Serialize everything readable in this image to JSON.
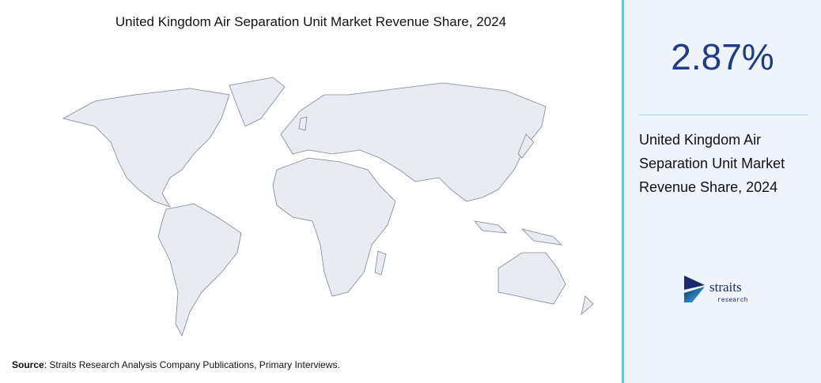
{
  "title": "United Kingdom Air Separation Unit Market Revenue Share, 2024",
  "stat": {
    "value": "2.87%",
    "description": [
      "United Kingdom Air",
      "Separation Unit Market",
      "Revenue Share, 2024"
    ]
  },
  "logo": {
    "name": "straits",
    "tagline": "research"
  },
  "source": {
    "label": "Source",
    "text": ": Straits Research Analysis Company Publications, Primary Interviews."
  }
}
